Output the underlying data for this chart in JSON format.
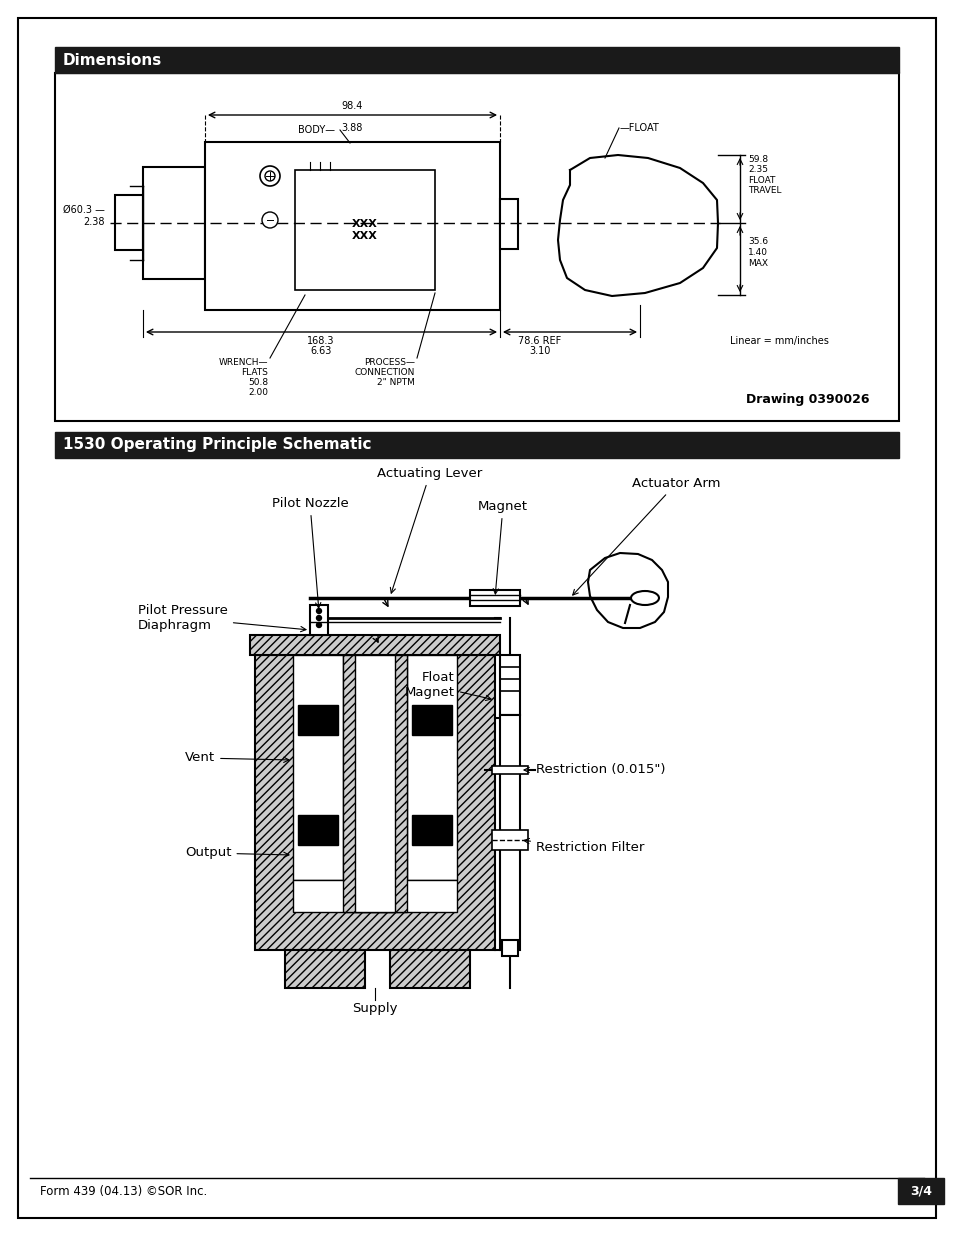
{
  "page_bg": "#ffffff",
  "header1_bg": "#1a1a1a",
  "header1_text": "Dimensions",
  "header1_text_color": "#ffffff",
  "header2_bg": "#1a1a1a",
  "header2_text": "1530 Operating Principle Schematic",
  "header2_text_color": "#ffffff",
  "footer_text": "Form 439 (04.13) ©SOR Inc.",
  "page_num": "3/4",
  "drawing_number": "Drawing 0390026",
  "linear_note": "Linear = mm/inches"
}
